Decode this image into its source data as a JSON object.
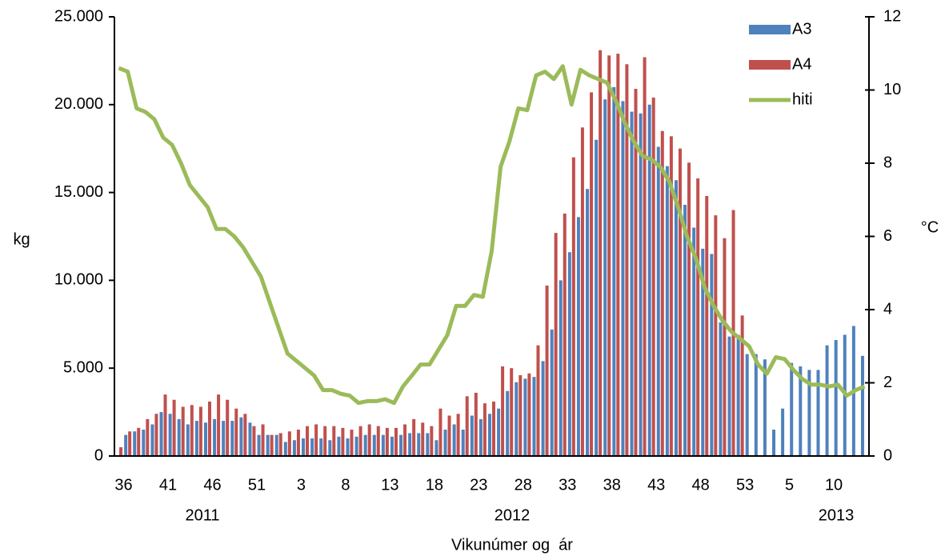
{
  "chart_data": {
    "type": "bar-line",
    "x_label": "Vikunúmer og  ár",
    "y_label": "kg",
    "y2_label": "°C",
    "categories": [
      "36",
      null,
      null,
      null,
      null,
      "41",
      null,
      null,
      null,
      null,
      "46",
      null,
      null,
      null,
      null,
      "51",
      null,
      null,
      null,
      null,
      "3",
      null,
      null,
      null,
      null,
      "8",
      null,
      null,
      null,
      null,
      "13",
      null,
      null,
      null,
      null,
      "18",
      null,
      null,
      null,
      null,
      "23",
      null,
      null,
      null,
      null,
      "28",
      null,
      null,
      null,
      null,
      "33",
      null,
      null,
      null,
      null,
      "38",
      null,
      null,
      null,
      null,
      "43",
      null,
      null,
      null,
      null,
      "48",
      null,
      null,
      null,
      null,
      "53",
      null,
      null,
      null,
      null,
      "5",
      null,
      null,
      null,
      null,
      "10",
      null,
      null,
      null,
      null
    ],
    "year_labels": [
      "2011",
      "2012",
      "2013"
    ],
    "series": [
      {
        "name": "A3",
        "color": "#4f81bd",
        "kind": "bar",
        "values": [
          0,
          1200,
          1400,
          1500,
          1800,
          2500,
          2400,
          2100,
          1800,
          2000,
          1900,
          2100,
          2000,
          2000,
          2200,
          1900,
          1200,
          1200,
          1200,
          800,
          900,
          1000,
          1000,
          1000,
          900,
          1100,
          1000,
          1100,
          1200,
          1200,
          1200,
          1100,
          1200,
          1300,
          1300,
          1300,
          900,
          1500,
          1800,
          1500,
          2300,
          2100,
          2400,
          2700,
          3700,
          4200,
          4400,
          4500,
          5400,
          7200,
          10000,
          11600,
          13600,
          15200,
          18000,
          20300,
          21000,
          20200,
          19600,
          19500,
          20000,
          17600,
          16500,
          15700,
          14300,
          13000,
          11800,
          11500,
          7600,
          6800,
          6900,
          5800,
          5800,
          5500,
          1500,
          2700,
          5300,
          5100,
          4900,
          4900,
          6300,
          6600,
          6900,
          7400,
          5700
        ]
      },
      {
        "name": "A4",
        "color": "#c0504d",
        "kind": "bar",
        "values": [
          500,
          1400,
          1600,
          2100,
          2400,
          3500,
          3200,
          2800,
          2900,
          2800,
          3100,
          3500,
          3200,
          2700,
          2400,
          1700,
          1800,
          1200,
          1300,
          1400,
          1500,
          1700,
          1800,
          1700,
          1700,
          1600,
          1500,
          1700,
          1800,
          1700,
          1600,
          1600,
          1800,
          2100,
          1900,
          1700,
          2700,
          2300,
          2400,
          3400,
          3600,
          3000,
          3100,
          5100,
          5000,
          4600,
          4700,
          6300,
          9700,
          12700,
          13800,
          17000,
          18700,
          20700,
          23100,
          22800,
          22900,
          22300,
          20900,
          22700,
          20400,
          18500,
          18200,
          17500,
          16700,
          15800,
          14800,
          13700,
          12400,
          14000,
          8000,
          null,
          null,
          null,
          null,
          null,
          null,
          null,
          null,
          null,
          null,
          null,
          null,
          null,
          null
        ]
      },
      {
        "name": "hiti",
        "color": "#9bbb59",
        "kind": "line",
        "axis": "y2",
        "values": [
          10.6,
          10.5,
          9.5,
          9.4,
          9.2,
          8.7,
          8.5,
          8.0,
          7.4,
          7.1,
          6.8,
          6.2,
          6.2,
          6.0,
          5.7,
          5.3,
          4.9,
          4.2,
          3.5,
          2.8,
          2.6,
          2.4,
          2.2,
          1.8,
          1.8,
          1.7,
          1.65,
          1.45,
          1.5,
          1.5,
          1.55,
          1.45,
          1.9,
          2.2,
          2.5,
          2.5,
          2.9,
          3.3,
          4.1,
          4.1,
          4.4,
          4.35,
          5.6,
          7.9,
          8.6,
          9.5,
          9.45,
          10.4,
          10.5,
          10.3,
          10.65,
          9.6,
          10.55,
          10.4,
          10.3,
          10.2,
          9.7,
          9.1,
          8.6,
          8.2,
          8.1,
          7.9,
          7.5,
          6.8,
          6.0,
          5.4,
          4.6,
          4.1,
          3.7,
          3.4,
          3.2,
          3.0,
          2.5,
          2.25,
          2.7,
          2.65,
          2.35,
          2.1,
          1.95,
          1.95,
          1.9,
          1.95,
          1.65,
          1.8,
          1.9
        ]
      }
    ],
    "ylim": [
      0,
      25000
    ],
    "yticks": [
      0,
      {
        "value": 5000,
        "label": "5.000"
      },
      {
        "value": 10000,
        "label": "10.000"
      },
      {
        "value": 15000,
        "label": "15.000"
      },
      {
        "value": 20000,
        "label": "20.000"
      },
      {
        "value": 25000,
        "label": "25.000"
      }
    ],
    "y2lim": [
      0,
      12
    ],
    "y2ticks": [
      0,
      2,
      4,
      6,
      8,
      10,
      12
    ],
    "legend": "top-right",
    "grid": false
  }
}
